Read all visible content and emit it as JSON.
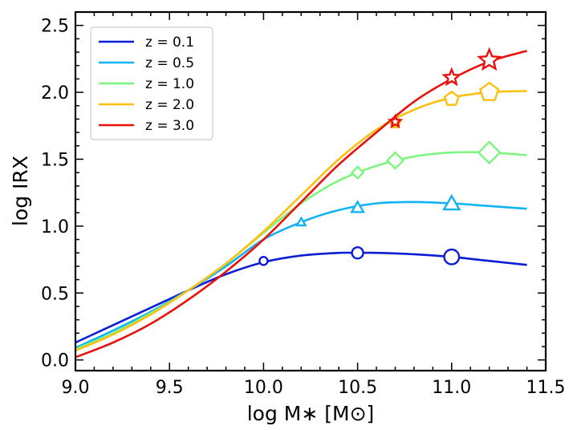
{
  "chart_data": {
    "type": "line",
    "xlabel": "log M∗ [M⊙]",
    "ylabel": "log IRX",
    "xlim": [
      9.0,
      11.5
    ],
    "ylim": [
      -0.08,
      2.6
    ],
    "x_ticks": [
      "9.0",
      "9.5",
      "10.0",
      "10.5",
      "11.0",
      "11.5"
    ],
    "y_ticks": [
      "0.0",
      "0.5",
      "1.0",
      "1.5",
      "2.0",
      "2.5"
    ],
    "legend_position": "top-left",
    "grid": false,
    "series": [
      {
        "name": "z = 0.1",
        "color": "#0a1ed6",
        "marker": "circle",
        "x": [
          9.0,
          9.2,
          9.4,
          9.6,
          9.8,
          10.0,
          10.2,
          10.4,
          10.5,
          10.6,
          10.8,
          11.0,
          11.2,
          11.4
        ],
        "y": [
          0.13,
          0.26,
          0.39,
          0.52,
          0.64,
          0.73,
          0.78,
          0.8,
          0.8,
          0.8,
          0.79,
          0.77,
          0.74,
          0.71
        ],
        "markers": [
          {
            "x": 10.0,
            "y": 0.74
          },
          {
            "x": 10.5,
            "y": 0.8
          },
          {
            "x": 11.0,
            "y": 0.77
          }
        ]
      },
      {
        "name": "z = 0.5",
        "color": "#12b3f2",
        "marker": "triangle",
        "x": [
          9.0,
          9.2,
          9.4,
          9.6,
          9.8,
          10.0,
          10.2,
          10.4,
          10.6,
          10.8,
          11.0,
          11.2,
          11.4
        ],
        "y": [
          0.09,
          0.22,
          0.36,
          0.52,
          0.7,
          0.9,
          1.03,
          1.12,
          1.17,
          1.18,
          1.17,
          1.15,
          1.13
        ],
        "markers": [
          {
            "x": 10.2,
            "y": 1.03
          },
          {
            "x": 10.5,
            "y": 1.14
          },
          {
            "x": 11.0,
            "y": 1.17
          }
        ]
      },
      {
        "name": "z = 1.0",
        "color": "#7ef57e",
        "marker": "diamond",
        "x": [
          9.0,
          9.2,
          9.4,
          9.6,
          9.8,
          10.0,
          10.2,
          10.4,
          10.6,
          10.8,
          11.0,
          11.2,
          11.4
        ],
        "y": [
          0.08,
          0.2,
          0.35,
          0.52,
          0.72,
          0.95,
          1.17,
          1.34,
          1.45,
          1.52,
          1.55,
          1.55,
          1.53
        ],
        "markers": [
          {
            "x": 10.5,
            "y": 1.4
          },
          {
            "x": 10.7,
            "y": 1.49
          },
          {
            "x": 11.2,
            "y": 1.55
          }
        ]
      },
      {
        "name": "z = 2.0",
        "color": "#fcc010",
        "marker": "pentagon",
        "x": [
          9.0,
          9.2,
          9.4,
          9.6,
          9.8,
          10.0,
          10.2,
          10.4,
          10.6,
          10.8,
          11.0,
          11.2,
          11.4
        ],
        "y": [
          0.07,
          0.19,
          0.34,
          0.52,
          0.72,
          0.96,
          1.23,
          1.5,
          1.72,
          1.87,
          1.96,
          2.0,
          2.01
        ],
        "markers": [
          {
            "x": 10.7,
            "y": 1.77
          },
          {
            "x": 11.0,
            "y": 1.95
          },
          {
            "x": 11.2,
            "y": 2.0
          }
        ]
      },
      {
        "name": "z = 3.0",
        "color": "#e8120d",
        "marker": "star",
        "x": [
          9.0,
          9.2,
          9.4,
          9.6,
          9.8,
          10.0,
          10.2,
          10.4,
          10.6,
          10.8,
          11.0,
          11.2,
          11.4
        ],
        "y": [
          0.02,
          0.13,
          0.27,
          0.45,
          0.66,
          0.9,
          1.18,
          1.46,
          1.7,
          1.93,
          2.1,
          2.23,
          2.31
        ],
        "markers": [
          {
            "x": 10.7,
            "y": 1.78
          },
          {
            "x": 11.0,
            "y": 2.11
          },
          {
            "x": 11.2,
            "y": 2.24
          }
        ]
      }
    ]
  }
}
